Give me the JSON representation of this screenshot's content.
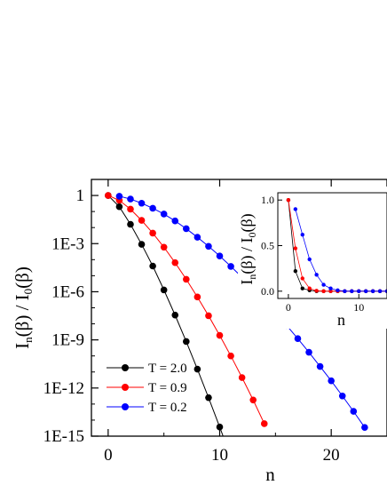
{
  "chart_data": [
    {
      "type": "line",
      "markers": true,
      "yscale": "log",
      "xlabel": "n",
      "ylabel": {
        "base": "I",
        "sub_top": "n",
        "mid": "(β) / I",
        "sub_bottom": "0",
        "end": "(β)"
      },
      "xlim": [
        -1.5,
        25
      ],
      "ylim": [
        1e-15,
        10
      ],
      "xticks": [
        0,
        10,
        20
      ],
      "yticks": [
        {
          "value": 1,
          "label": "1"
        },
        {
          "value": 0.001,
          "label": "1E-3"
        },
        {
          "value": 1e-06,
          "label": "1E-6"
        },
        {
          "value": 1e-09,
          "label": "1E-9"
        },
        {
          "value": 1e-12,
          "label": "1E-12"
        },
        {
          "value": 1e-15,
          "label": "1E-15"
        }
      ],
      "legend": {
        "placement": "bottom-left"
      },
      "series": [
        {
          "name": "T = 2.0",
          "color": "#000000",
          "x": [
            0,
            1,
            2,
            3,
            4,
            5,
            6,
            7,
            8,
            9,
            10,
            11
          ],
          "y": [
            1,
            0.2,
            0.016,
            0.0009,
            4e-05,
            1.3e-06,
            3.5e-08,
            7.9e-10,
            1.5e-11,
            2.5e-13,
            3.7e-15,
            5e-17
          ]
        },
        {
          "name": "T = 0.9",
          "color": "#ff0000",
          "x": [
            0,
            1,
            2,
            3,
            4,
            5,
            6,
            7,
            8,
            9,
            10,
            11,
            12,
            13,
            14
          ],
          "y": [
            1,
            0.5,
            0.14,
            0.028,
            0.0045,
            0.0006,
            6.5e-05,
            6e-06,
            4.7e-07,
            3.2e-08,
            1.9e-09,
            1e-10,
            4.5e-12,
            1.8e-13,
            6e-15
          ]
        },
        {
          "name": "T = 0.2",
          "color": "#0000ff",
          "x": [
            1,
            2,
            3,
            4,
            5,
            6,
            7,
            8,
            9,
            10,
            11,
            12,
            13,
            14,
            15,
            16,
            17,
            18,
            19,
            20,
            21,
            22,
            23
          ],
          "y": [
            0.9,
            0.6,
            0.33,
            0.16,
            0.07,
            0.026,
            0.0085,
            0.0025,
            0.00068,
            0.00017,
            3.8e-05,
            8e-06,
            1.6e-06,
            3e-07,
            5e-08,
            8e-09,
            1.2e-09,
            1.7e-10,
            2.2e-11,
            2.8e-12,
            3.2e-13,
            3.5e-14,
            3.5e-15
          ]
        }
      ]
    },
    {
      "type": "line",
      "markers": true,
      "inset": true,
      "xlabel": "n",
      "ylabel": {
        "base": "I",
        "sub_top": "n",
        "mid": "(β) / I",
        "sub_bottom": "0",
        "end": "(β)"
      },
      "xlim": [
        -1.5,
        14
      ],
      "ylim": [
        -0.08,
        1.08
      ],
      "xticks": [
        0,
        10
      ],
      "yticks": [
        {
          "value": 0,
          "label": "0.0"
        },
        {
          "value": 0.5,
          "label": "0.5"
        },
        {
          "value": 1,
          "label": "1.0"
        }
      ],
      "series": [
        {
          "name": "T = 2.0",
          "color": "#000000",
          "x": [
            0,
            1,
            2,
            3,
            4,
            5,
            6,
            7,
            8,
            9,
            10,
            11,
            12,
            13,
            14
          ],
          "y": [
            1,
            0.22,
            0.03,
            0.01,
            0,
            0,
            0,
            0,
            0,
            0,
            0,
            0,
            0,
            0,
            0
          ]
        },
        {
          "name": "T = 0.9",
          "color": "#ff0000",
          "x": [
            0,
            1,
            2,
            3,
            4,
            5,
            6,
            7,
            8,
            9,
            10,
            11,
            12,
            13,
            14
          ],
          "y": [
            1,
            0.47,
            0.14,
            0.03,
            0.005,
            0,
            0,
            0,
            0,
            0,
            0,
            0,
            0,
            0,
            0
          ]
        },
        {
          "name": "T = 0.2",
          "color": "#0000ff",
          "x": [
            1,
            2,
            3,
            4,
            5,
            6,
            7,
            8,
            9,
            10,
            11,
            12,
            13,
            14
          ],
          "y": [
            0.9,
            0.62,
            0.35,
            0.18,
            0.07,
            0.03,
            0.01,
            0,
            0,
            0,
            0,
            0,
            0,
            0
          ]
        }
      ]
    }
  ]
}
